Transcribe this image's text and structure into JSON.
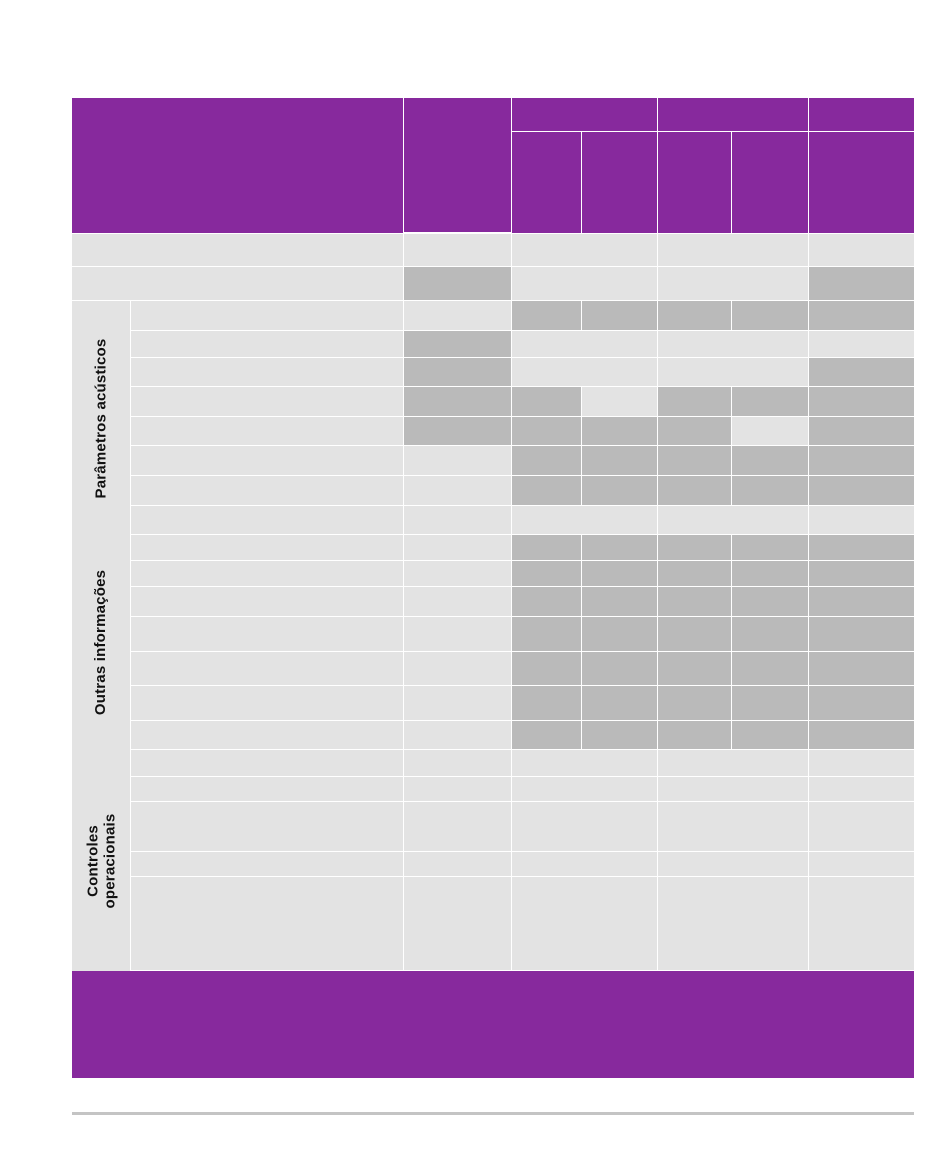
{
  "colors": {
    "header": "#87299d",
    "cell_light": "#e3e3e3",
    "cell_dark": "#bababa",
    "footer_rule": "#c4c4c4"
  },
  "groups": [
    {
      "name": "acoustic-parameters",
      "label": "Parâmetros acústicos"
    },
    {
      "name": "other-info",
      "label": "Outras informações"
    },
    {
      "name": "operational-controls",
      "label": "Controles operacionais"
    }
  ],
  "table": {
    "pattern": {
      "legend": "L = light grey cell, D = dark grey cell",
      "summary_rows": [
        [
          "L",
          "L",
          "L",
          "L",
          "L",
          "L"
        ],
        [
          "D",
          "L",
          "L",
          "L",
          "L",
          "D"
        ]
      ],
      "acoustic_rows": [
        [
          "L",
          "D",
          "D",
          "D",
          "D",
          "D"
        ],
        [
          "D",
          "L",
          "L",
          "L",
          "L",
          "L"
        ],
        [
          "D",
          "L",
          "L",
          "L",
          "L",
          "D"
        ],
        [
          "D",
          "D",
          "L",
          "D",
          "D",
          "D"
        ],
        [
          "D",
          "D",
          "D",
          "D",
          "L",
          "D"
        ],
        [
          "L",
          "D",
          "D",
          "D",
          "D",
          "D"
        ],
        [
          "L",
          "D",
          "D",
          "D",
          "D",
          "D"
        ],
        [
          "L",
          "L",
          "L",
          "L",
          "L",
          "L"
        ]
      ],
      "other_rows": [
        [
          "L",
          "D",
          "D",
          "D",
          "D",
          "D"
        ],
        [
          "L",
          "D",
          "D",
          "D",
          "D",
          "D"
        ],
        [
          "L",
          "D",
          "D",
          "D",
          "D",
          "D"
        ],
        [
          "L",
          "D",
          "D",
          "D",
          "D",
          "D"
        ],
        [
          "L",
          "D",
          "D",
          "D",
          "D",
          "D"
        ],
        [
          "L",
          "D",
          "D",
          "D",
          "D",
          "D"
        ],
        [
          "L",
          "D",
          "D",
          "D",
          "D",
          "D"
        ]
      ],
      "control_rows": [
        [
          "L",
          "L",
          "L",
          "L",
          "L",
          "L"
        ],
        [
          "L",
          "L",
          "L",
          "L",
          "L",
          "L"
        ],
        [
          "L",
          "L",
          "L",
          "L",
          "L",
          "L"
        ],
        [
          "L",
          "L",
          "L",
          "L",
          "L",
          "L"
        ],
        [
          "L",
          "L",
          "L",
          "L",
          "L",
          "L"
        ]
      ]
    }
  }
}
